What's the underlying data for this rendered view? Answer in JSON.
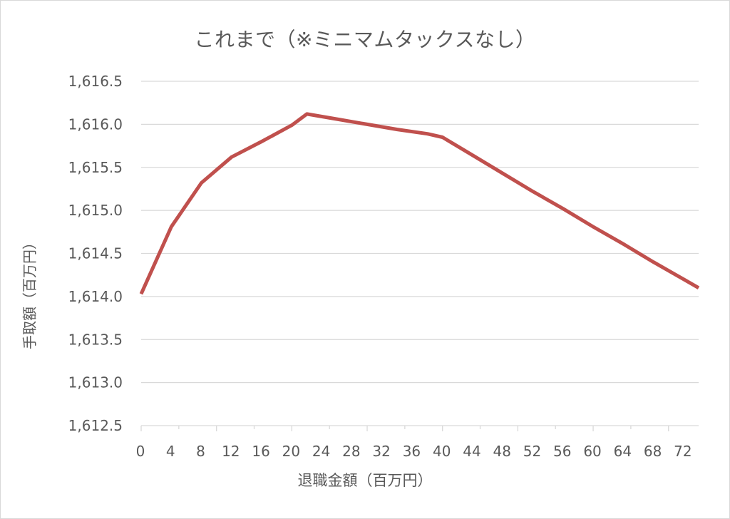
{
  "chart_data": {
    "type": "line",
    "title": "これまで（※ミニマムタックスなし）",
    "xlabel": "退職金額（百万円）",
    "ylabel": "手取額（百万円）",
    "x_tick_labels": [
      "0",
      "4",
      "8",
      "12",
      "16",
      "20",
      "24",
      "28",
      "32",
      "36",
      "40",
      "44",
      "48",
      "52",
      "56",
      "60",
      "64",
      "68",
      "72"
    ],
    "y_tick_labels": [
      "1,616.5",
      "1,616.0",
      "1,615.5",
      "1,615.0",
      "1,614.5",
      "1,614.0",
      "1,613.5",
      "1,613.0",
      "1,612.5"
    ],
    "ylim": [
      1612.5,
      1616.5
    ],
    "xlim": [
      0,
      74
    ],
    "grid": true,
    "legend": "none",
    "series": [
      {
        "name": "手取額",
        "color": "#c0504d",
        "x": [
          0,
          4,
          8,
          12,
          16,
          20,
          22,
          26,
          30,
          34,
          38,
          40,
          44,
          48,
          52,
          56,
          60,
          64,
          68,
          72,
          74
        ],
        "values": [
          1614.03,
          1614.81,
          1615.32,
          1615.62,
          1615.8,
          1615.99,
          1616.12,
          1616.06,
          1616.0,
          1615.94,
          1615.89,
          1615.85,
          1615.64,
          1615.43,
          1615.22,
          1615.02,
          1614.81,
          1614.61,
          1614.4,
          1614.2,
          1614.1
        ]
      }
    ]
  },
  "title": "これまで（※ミニマムタックスなし）",
  "xlabel": "退職金額（百万円）",
  "ylabel": "手取額（百万円）"
}
